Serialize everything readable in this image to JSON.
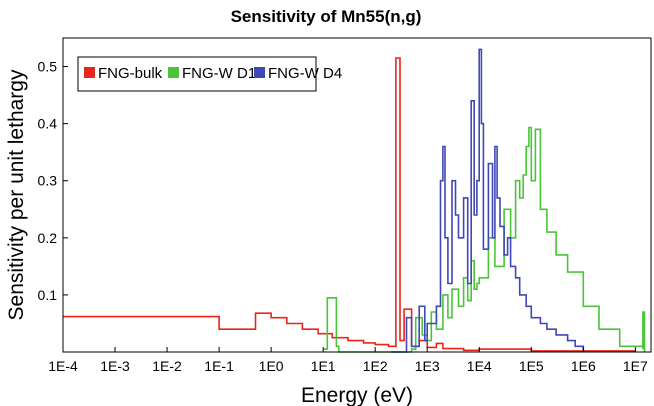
{
  "chart_data": {
    "type": "line",
    "title": "Sensitivity of Mn55(n,g)",
    "xlabel": "Energy (eV)",
    "ylabel": "Sensitivity per unit lethargy",
    "xscale": "log",
    "xlim": [
      0.0001,
      20000000
    ],
    "ylim": [
      0,
      0.55
    ],
    "grid": false,
    "legend_position": "top-left",
    "x_ticks": [
      "1E-4",
      "1E-3",
      "1E-2",
      "1E-1",
      "1E0",
      "1E1",
      "1E2",
      "1E3",
      "1E4",
      "1E5",
      "1E6",
      "1E7"
    ],
    "y_ticks": [
      "0.1",
      "0.2",
      "0.3",
      "0.4",
      "0.5"
    ],
    "y_tick_values": [
      0.1,
      0.2,
      0.3,
      0.4,
      0.5
    ],
    "series": [
      {
        "name": "FNG-bulk",
        "color": "#e8271c",
        "x": [
          0.0001,
          0.1,
          0.1,
          0.5,
          0.5,
          1,
          2,
          4,
          8,
          15,
          30,
          60,
          100,
          180,
          250,
          250,
          300,
          300,
          360,
          360,
          500,
          700,
          1000,
          1500,
          2000,
          5000,
          10000,
          100000,
          10000000
        ],
        "y": [
          0.062,
          0.062,
          0.04,
          0.04,
          0.068,
          0.06,
          0.05,
          0.04,
          0.032,
          0.025,
          0.02,
          0.016,
          0.013,
          0.01,
          0.065,
          0.515,
          0.515,
          0.02,
          0.02,
          0.075,
          0.01,
          0.02,
          0.008,
          0.015,
          0.006,
          0.003,
          0.005,
          0.002,
          0.001
        ]
      },
      {
        "name": "FNG-W D1",
        "color": "#4bc43a",
        "x": [
          10,
          12,
          12,
          18,
          18,
          20,
          500,
          600,
          800,
          1000,
          1200,
          1500,
          2000,
          2500,
          3000,
          4000,
          5000,
          6000,
          7000,
          8000,
          9000,
          10000,
          15000,
          20000,
          30000,
          40000,
          50000,
          60000,
          70000,
          80000,
          90000,
          100000,
          120000,
          150000,
          200000,
          300000,
          500000,
          1000000,
          2000000,
          5000000,
          14000000,
          14000000,
          15000000
        ],
        "y": [
          0.005,
          0.005,
          0.095,
          0.095,
          0.01,
          0.0,
          0.005,
          0.06,
          0.03,
          0.02,
          0.07,
          0.04,
          0.1,
          0.06,
          0.11,
          0.08,
          0.13,
          0.09,
          0.16,
          0.11,
          0.12,
          0.13,
          0.2,
          0.15,
          0.25,
          0.2,
          0.3,
          0.27,
          0.31,
          0.36,
          0.393,
          0.3,
          0.39,
          0.25,
          0.21,
          0.17,
          0.14,
          0.08,
          0.04,
          0.01,
          0.005,
          0.07,
          0.0
        ]
      },
      {
        "name": "FNG-W D4",
        "color": "#3f48b5",
        "x": [
          200,
          400,
          500,
          700,
          900,
          1000,
          1500,
          1800,
          2000,
          2200,
          2500,
          3000,
          3500,
          4000,
          5000,
          6000,
          7000,
          8000,
          9000,
          10000,
          11000,
          12000,
          15000,
          18000,
          20000,
          22000,
          25000,
          30000,
          35000,
          40000,
          50000,
          60000,
          80000,
          100000,
          150000,
          200000,
          300000,
          500000,
          700000,
          1000000
        ],
        "y": [
          0.0,
          0.06,
          0.01,
          0.08,
          0.02,
          0.05,
          0.08,
          0.3,
          0.36,
          0.2,
          0.12,
          0.3,
          0.24,
          0.2,
          0.27,
          0.12,
          0.44,
          0.24,
          0.3,
          0.53,
          0.4,
          0.18,
          0.33,
          0.2,
          0.36,
          0.27,
          0.22,
          0.17,
          0.2,
          0.15,
          0.13,
          0.1,
          0.08,
          0.06,
          0.05,
          0.04,
          0.03,
          0.02,
          0.01,
          0.002
        ]
      }
    ]
  }
}
